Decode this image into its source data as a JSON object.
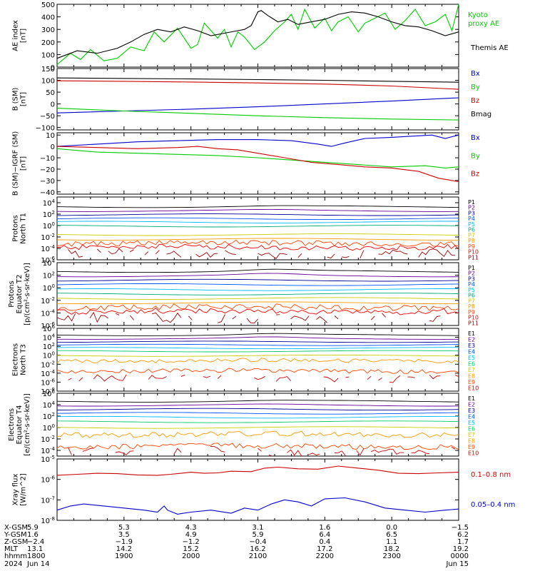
{
  "chart_data": [
    {
      "type": "line",
      "ylabel": [
        "AE index",
        "[nT]"
      ],
      "ylim": [
        0,
        500
      ],
      "yscale": "linear",
      "yticks": [
        "500",
        "400",
        "300",
        "200",
        "100",
        "0"
      ],
      "legend": [
        {
          "label": "Kyoto",
          "color": "#00cc00"
        },
        {
          "label": "proxy AE",
          "color": "#00cc00"
        },
        {
          "label": "Themis AE",
          "color": "#000000"
        }
      ],
      "series": [
        {
          "name": "Kyoto proxy AE",
          "color": "#00cc00",
          "x": [
            0,
            0.2,
            0.35,
            0.5,
            0.7,
            0.9,
            1.1,
            1.3,
            1.45,
            1.6,
            1.8,
            2.0,
            2.1,
            2.2,
            2.4,
            2.5,
            2.6,
            2.7,
            2.8,
            2.95,
            3.1,
            3.25,
            3.4,
            3.5,
            3.6,
            3.7,
            3.85,
            4.0,
            4.1,
            4.2,
            4.35,
            4.5,
            4.6,
            4.75,
            4.9,
            5.05,
            5.2,
            5.35,
            5.5,
            5.65,
            5.8,
            5.9,
            6.0
          ],
          "y": [
            20,
            110,
            60,
            140,
            50,
            70,
            160,
            130,
            280,
            200,
            310,
            150,
            180,
            350,
            230,
            300,
            160,
            280,
            240,
            140,
            200,
            290,
            360,
            420,
            300,
            460,
            310,
            390,
            290,
            360,
            400,
            280,
            350,
            390,
            430,
            300,
            370,
            460,
            330,
            360,
            420,
            290,
            500
          ]
        },
        {
          "name": "Themis AE",
          "color": "#000000",
          "x": [
            0,
            0.3,
            0.6,
            0.9,
            1.1,
            1.3,
            1.5,
            1.7,
            1.9,
            2.1,
            2.3,
            2.5,
            2.7,
            2.8,
            2.9,
            3.0,
            3.05,
            3.15,
            3.3,
            3.45,
            3.6,
            3.8,
            4.0,
            4.2,
            4.4,
            4.6,
            4.8,
            5.0,
            5.2,
            5.4,
            5.6,
            5.8,
            6.0
          ],
          "y": [
            70,
            130,
            110,
            150,
            200,
            260,
            300,
            280,
            320,
            290,
            250,
            270,
            290,
            300,
            330,
            440,
            450,
            410,
            360,
            380,
            340,
            360,
            380,
            420,
            440,
            430,
            400,
            360,
            330,
            320,
            290,
            250,
            280
          ]
        }
      ]
    },
    {
      "type": "line",
      "ylabel": [
        "B (SM)",
        "[nT]"
      ],
      "ylim": [
        -110,
        150
      ],
      "yscale": "linear",
      "yticks": [
        "150",
        "100",
        "50",
        "0",
        "−50",
        "−100"
      ],
      "legend": [
        {
          "label": "Bx",
          "color": "#0000cc"
        },
        {
          "label": "By",
          "color": "#00cc00"
        },
        {
          "label": "Bz",
          "color": "#cc0000"
        },
        {
          "label": "Bmag",
          "color": "#000000"
        }
      ],
      "series": [
        {
          "name": "Bx",
          "color": "#0000cc",
          "x": [
            0,
            1,
            2,
            3,
            4,
            5,
            6
          ],
          "y": [
            -38,
            -30,
            -22,
            -12,
            0,
            12,
            26
          ]
        },
        {
          "name": "By",
          "color": "#00cc00",
          "x": [
            0,
            1,
            2,
            3,
            4,
            5,
            6
          ],
          "y": [
            -18,
            -30,
            -40,
            -50,
            -58,
            -64,
            -68
          ]
        },
        {
          "name": "Bz",
          "color": "#cc0000",
          "x": [
            0,
            1,
            2,
            3,
            4,
            5,
            6
          ],
          "y": [
            98,
            96,
            93,
            89,
            84,
            76,
            62
          ]
        },
        {
          "name": "Bmag",
          "color": "#000000",
          "x": [
            0,
            1,
            2,
            3,
            4,
            5,
            6
          ],
          "y": [
            110,
            108,
            106,
            103,
            100,
            96,
            92
          ]
        }
      ]
    },
    {
      "type": "line",
      "ylabel": [
        "B (SM)−IGRF (SM)",
        "[nT]"
      ],
      "ylim": [
        -42,
        12
      ],
      "yscale": "linear",
      "yticks": [
        "10",
        "0",
        "−10",
        "−20",
        "−30",
        "−40"
      ],
      "legend": [
        {
          "label": "Bx",
          "color": "#0000cc"
        },
        {
          "label": "By",
          "color": "#00cc00"
        },
        {
          "label": "Bz",
          "color": "#cc0000"
        }
      ],
      "series": [
        {
          "name": "Bx",
          "color": "#0000cc",
          "x": [
            0,
            0.6,
            1.2,
            1.8,
            2.4,
            3.0,
            3.5,
            3.9,
            4.1,
            4.3,
            4.6,
            5.0,
            5.3,
            5.6,
            5.8,
            6.0
          ],
          "y": [
            0,
            2,
            4,
            5,
            6,
            6,
            5,
            2,
            0,
            3,
            7,
            8,
            9,
            10,
            7,
            10
          ]
        },
        {
          "name": "By",
          "color": "#00cc00",
          "x": [
            0,
            0.6,
            1.2,
            1.8,
            2.4,
            3.0,
            3.5,
            4.0,
            4.5,
            5.0,
            5.5,
            5.8,
            6.0
          ],
          "y": [
            -2,
            -5,
            -6,
            -7,
            -8,
            -10,
            -12,
            -14,
            -16,
            -18,
            -17,
            -19,
            -18
          ]
        },
        {
          "name": "Bz",
          "color": "#cc0000",
          "x": [
            0,
            0.6,
            1.2,
            1.8,
            2.1,
            2.4,
            2.7,
            3.0,
            3.4,
            3.8,
            4.2,
            4.6,
            5.0,
            5.4,
            5.7,
            6.0
          ],
          "y": [
            0,
            -1,
            -2,
            -1,
            0,
            -2,
            -3,
            -6,
            -10,
            -14,
            -16,
            -18,
            -19,
            -22,
            -28,
            -31
          ]
        }
      ]
    },
    {
      "type": "line",
      "ylabel": [
        "Protons",
        "North T1"
      ],
      "ylim": [
        -6,
        5
      ],
      "yscale": "log",
      "yticks": [
        "10^4",
        "10^2",
        "10^0",
        "10^-2",
        "10^-4",
        "10^-6"
      ],
      "channels": [
        {
          "name": "P1",
          "color": "#000000",
          "level": 3.3
        },
        {
          "name": "P2",
          "color": "#660099",
          "level": 2.6
        },
        {
          "name": "P3",
          "color": "#000099",
          "level": 1.9
        },
        {
          "name": "P4",
          "color": "#0055ff",
          "level": 1.2
        },
        {
          "name": "P5",
          "color": "#00bbff",
          "level": 0.6
        },
        {
          "name": "P6",
          "color": "#00aa77",
          "level": -0.1
        },
        {
          "name": "P7",
          "color": "#cccc00",
          "level": -1.6
        },
        {
          "name": "P8",
          "color": "#ff9900",
          "level": -2.4
        },
        {
          "name": "P9",
          "color": "#ff4400",
          "level": -3.1
        },
        {
          "name": "P10",
          "color": "#ee0000",
          "level": -3.8
        },
        {
          "name": "P11",
          "color": "#990000",
          "level": -5.0
        }
      ]
    },
    {
      "type": "line",
      "ylabel": [
        "Protons",
        "Equator T2",
        "[p/(cm²-s-sr-keV)]"
      ],
      "ylim": [
        -6,
        4
      ],
      "yscale": "log",
      "yticks": [
        "10^4",
        "10^2",
        "10^0",
        "10^-2",
        "10^-4",
        "10^-6"
      ],
      "channels": [
        {
          "name": "P1",
          "color": "#000000",
          "level": 2.6
        },
        {
          "name": "P2",
          "color": "#660099",
          "level": 1.9
        },
        {
          "name": "P3",
          "color": "#000099",
          "level": 1.2
        },
        {
          "name": "P4",
          "color": "#0055ff",
          "level": 0.5
        },
        {
          "name": "P5",
          "color": "#00bbff",
          "level": -0.3
        },
        {
          "name": "P6",
          "color": "#00aa77",
          "level": -1.0
        },
        {
          "name": "P7",
          "color": "#cccc00",
          "level": -1.7
        },
        {
          "name": "P8",
          "color": "#ff9900",
          "level": -2.4
        },
        {
          "name": "P9",
          "color": "#ff4400",
          "level": -3.1
        },
        {
          "name": "P10",
          "color": "#ee0000",
          "level": -3.8
        },
        {
          "name": "P11",
          "color": "#990000",
          "level": -4.8
        }
      ]
    },
    {
      "type": "line",
      "ylabel": [
        "Electrons",
        "North T3"
      ],
      "ylim": [
        -8,
        6
      ],
      "yscale": "log",
      "yticks": [
        "10^6",
        "10^4",
        "10^2",
        "10^0",
        "10^-2",
        "10^-4",
        "10^-6",
        "10^-8"
      ],
      "channels": [
        {
          "name": "E1",
          "color": "#000000",
          "level": 4.5
        },
        {
          "name": "E2",
          "color": "#660099",
          "level": 3.7
        },
        {
          "name": "E3",
          "color": "#000099",
          "level": 3.0
        },
        {
          "name": "E4",
          "color": "#0055ff",
          "level": 2.3
        },
        {
          "name": "E5",
          "color": "#00bbff",
          "level": 1.6
        },
        {
          "name": "E6",
          "color": "#00cc66",
          "level": 0.9
        },
        {
          "name": "E7",
          "color": "#cccc00",
          "level": -0.1
        },
        {
          "name": "E8",
          "color": "#ff9900",
          "level": -1.2
        },
        {
          "name": "E9",
          "color": "#ff4400",
          "level": -3.5
        },
        {
          "name": "E10",
          "color": "#cc0000",
          "level": -5.2
        }
      ]
    },
    {
      "type": "line",
      "ylabel": [
        "Electrons",
        "Equator T4",
        "[e/(cm²-s-sr-keV)]"
      ],
      "ylim": [
        -5,
        6
      ],
      "yscale": "log",
      "yticks": [
        "10^6",
        "10^4",
        "10^2",
        "10^0",
        "10^-2",
        "10^-4"
      ],
      "channels": [
        {
          "name": "E1",
          "color": "#000000",
          "level": 4.6
        },
        {
          "name": "E2",
          "color": "#660099",
          "level": 3.9
        },
        {
          "name": "E3",
          "color": "#000099",
          "level": 3.2
        },
        {
          "name": "E4",
          "color": "#0055ff",
          "level": 2.5
        },
        {
          "name": "E5",
          "color": "#00bbff",
          "level": 1.8
        },
        {
          "name": "E6",
          "color": "#00cc66",
          "level": 1.0
        },
        {
          "name": "E7",
          "color": "#cccc00",
          "level": 0.0
        },
        {
          "name": "E8",
          "color": "#ff9900",
          "level": -1.2
        },
        {
          "name": "E9",
          "color": "#ff4400",
          "level": -3.3
        },
        {
          "name": "E10",
          "color": "#cc0000",
          "level": -4.2
        }
      ]
    },
    {
      "type": "line",
      "ylabel": [
        "Xray flux",
        "[W/m^2]"
      ],
      "ylim": [
        -8,
        -5
      ],
      "yscale": "log",
      "yticks": [
        "10^-5",
        "10^-6",
        "10^-7",
        "10^-8"
      ],
      "legend": [
        {
          "label": "0.1–0.8 nm",
          "color": "#cc0000"
        },
        {
          "label": "0.05–0.4 nm",
          "color": "#0000cc"
        }
      ],
      "series": [
        {
          "name": "0.1–0.8 nm",
          "color": "#cc0000",
          "x": [
            0,
            0.3,
            0.6,
            0.9,
            1.2,
            1.5,
            1.7,
            1.85,
            2.0,
            2.2,
            2.4,
            2.6,
            2.9,
            3.1,
            3.3,
            3.6,
            3.9,
            4.2,
            4.5,
            4.8,
            5.1,
            5.4,
            5.7,
            6.0
          ],
          "y": [
            -5.8,
            -5.75,
            -5.7,
            -5.72,
            -5.78,
            -5.8,
            -5.75,
            -5.7,
            -5.65,
            -5.7,
            -5.68,
            -5.6,
            -5.62,
            -5.45,
            -5.4,
            -5.48,
            -5.5,
            -5.35,
            -5.45,
            -5.55,
            -5.7,
            -5.72,
            -5.68,
            -5.65
          ]
        },
        {
          "name": "0.05–0.4 nm",
          "color": "#0000cc",
          "x": [
            0,
            0.2,
            0.4,
            0.7,
            1.0,
            1.3,
            1.5,
            1.6,
            1.65,
            1.8,
            2.0,
            2.3,
            2.6,
            2.8,
            3.0,
            3.2,
            3.4,
            3.6,
            3.8,
            4.0,
            4.3,
            4.6,
            4.9,
            5.2,
            5.5,
            5.8,
            6.0
          ],
          "y": [
            -7.5,
            -7.3,
            -7.2,
            -7.3,
            -7.4,
            -7.5,
            -7.6,
            -7.3,
            -7.5,
            -7.7,
            -7.6,
            -7.5,
            -7.65,
            -7.4,
            -7.5,
            -7.2,
            -7.0,
            -7.1,
            -7.3,
            -6.95,
            -6.9,
            -7.1,
            -7.4,
            -7.5,
            -7.6,
            -7.5,
            -7.45
          ]
        }
      ]
    }
  ],
  "footer": {
    "labels": [
      "X-GSM",
      "Y-GSM",
      "Z-GSM",
      "MLT",
      "hhmm",
      "2024"
    ],
    "columns": [
      [
        "5.9",
        "1.6",
        "−2.4",
        "13.1",
        "1800",
        "Jun 14"
      ],
      [
        "5.3",
        "3.5",
        "−1.9",
        "14.2",
        "1900",
        ""
      ],
      [
        "4.3",
        "4.9",
        "−1.2",
        "15.2",
        "2000",
        ""
      ],
      [
        "3.1",
        "5.9",
        "−0.4",
        "16.2",
        "2100",
        ""
      ],
      [
        "1.6",
        "6.4",
        "0.4",
        "17.2",
        "2200",
        ""
      ],
      [
        "0.0",
        "6.5",
        "1.1",
        "18.2",
        "2300",
        ""
      ],
      [
        "−1.5",
        "6.2",
        "1.7",
        "19.2",
        "0000",
        "Jun 15"
      ]
    ]
  }
}
